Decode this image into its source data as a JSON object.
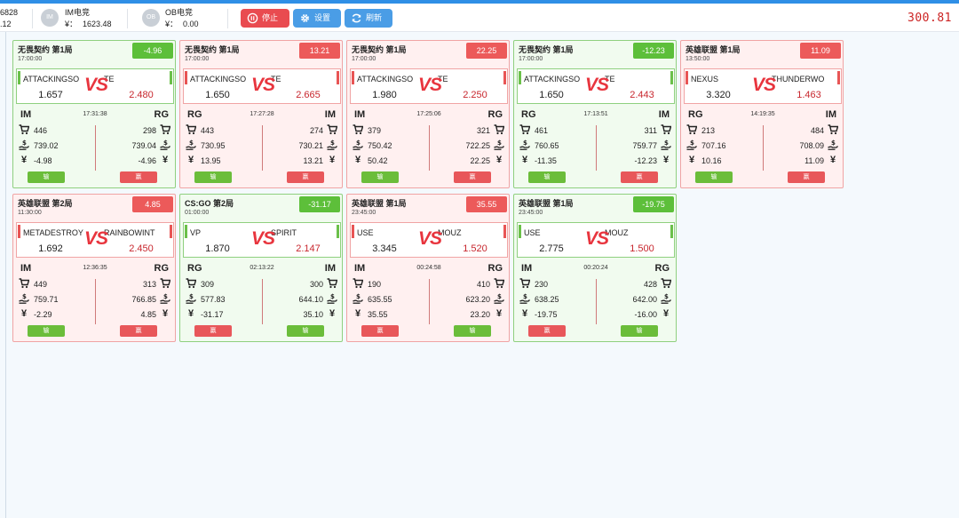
{
  "header": {
    "accounts": [
      {
        "line1": "6828",
        "line2": ".12"
      },
      {
        "avatar": "IM",
        "name": "IM电竞",
        "balance_label": "¥：",
        "balance": "1623.48"
      },
      {
        "avatar": "OB",
        "name": "OB电竞",
        "balance_label": "¥：",
        "balance": "0.00"
      }
    ],
    "buttons": {
      "stop": "停止",
      "settings": "设置",
      "refresh": "刷新"
    },
    "total": "300.81"
  },
  "colors": {
    "accent": "#4a9de6",
    "win_green": "#5dbf3a",
    "loss_red": "#ec5a5a",
    "vs_red": "#e8353e"
  },
  "cards": [
    {
      "status": "green",
      "game": "无畏契约 第1局",
      "time": "17:00:00",
      "profit": "-4.96",
      "team_a": "ATTACKINGSO",
      "team_b": "TE",
      "odds_a": "1.657",
      "odds_b": "2.480",
      "plat_a": "IM",
      "plat_b": "RG",
      "bet_time": "17:31:38",
      "stake_a": "446",
      "stake_b": "298",
      "ret_a": "739.02",
      "ret_b": "739.04",
      "pnl_a": "-4.98",
      "pnl_b": "-4.96",
      "res_a": "输",
      "res_b": "赢",
      "res_a_color": "g",
      "res_b_color": "r"
    },
    {
      "status": "red",
      "game": "无畏契约 第1局",
      "time": "17:00:00",
      "profit": "13.21",
      "team_a": "ATTACKINGSO",
      "team_b": "TE",
      "odds_a": "1.650",
      "odds_b": "2.665",
      "plat_a": "RG",
      "plat_b": "IM",
      "bet_time": "17:27:28",
      "stake_a": "443",
      "stake_b": "274",
      "ret_a": "730.95",
      "ret_b": "730.21",
      "pnl_a": "13.95",
      "pnl_b": "13.21",
      "res_a": "输",
      "res_b": "赢",
      "res_a_color": "g",
      "res_b_color": "r"
    },
    {
      "status": "red",
      "game": "无畏契约 第1局",
      "time": "17:00:00",
      "profit": "22.25",
      "team_a": "ATTACKINGSO",
      "team_b": "TE",
      "odds_a": "1.980",
      "odds_b": "2.250",
      "plat_a": "IM",
      "plat_b": "RG",
      "bet_time": "17:25:06",
      "stake_a": "379",
      "stake_b": "321",
      "ret_a": "750.42",
      "ret_b": "722.25",
      "pnl_a": "50.42",
      "pnl_b": "22.25",
      "res_a": "输",
      "res_b": "赢",
      "res_a_color": "g",
      "res_b_color": "r"
    },
    {
      "status": "green",
      "game": "无畏契约 第1局",
      "time": "17:00:00",
      "profit": "-12.23",
      "team_a": "ATTACKINGSO",
      "team_b": "TE",
      "odds_a": "1.650",
      "odds_b": "2.443",
      "plat_a": "RG",
      "plat_b": "IM",
      "bet_time": "17:13:51",
      "stake_a": "461",
      "stake_b": "311",
      "ret_a": "760.65",
      "ret_b": "759.77",
      "pnl_a": "-11.35",
      "pnl_b": "-12.23",
      "res_a": "输",
      "res_b": "赢",
      "res_a_color": "g",
      "res_b_color": "r"
    },
    {
      "status": "red",
      "game": "英雄联盟 第1局",
      "time": "13:50:00",
      "profit": "11.09",
      "team_a": "NEXUS",
      "team_b": "THUNDERWO",
      "odds_a": "3.320",
      "odds_b": "1.463",
      "plat_a": "RG",
      "plat_b": "IM",
      "bet_time": "14:19:35",
      "stake_a": "213",
      "stake_b": "484",
      "ret_a": "707.16",
      "ret_b": "708.09",
      "pnl_a": "10.16",
      "pnl_b": "11.09",
      "res_a": "输",
      "res_b": "赢",
      "res_a_color": "g",
      "res_b_color": "r"
    },
    {
      "status": "red",
      "game": "英雄联盟 第2局",
      "time": "11:30:00",
      "profit": "4.85",
      "team_a": "METADESTROY",
      "team_b": "RAINBOWINT",
      "odds_a": "1.692",
      "odds_b": "2.450",
      "plat_a": "IM",
      "plat_b": "RG",
      "bet_time": "12:36:35",
      "stake_a": "449",
      "stake_b": "313",
      "ret_a": "759.71",
      "ret_b": "766.85",
      "pnl_a": "-2.29",
      "pnl_b": "4.85",
      "res_a": "输",
      "res_b": "赢",
      "res_a_color": "g",
      "res_b_color": "r"
    },
    {
      "status": "green",
      "game": "CS:GO 第2局",
      "time": "01:00:00",
      "profit": "-31.17",
      "team_a": "VP",
      "team_b": "SPIRIT",
      "odds_a": "1.870",
      "odds_b": "2.147",
      "plat_a": "RG",
      "plat_b": "IM",
      "bet_time": "02:13:22",
      "stake_a": "309",
      "stake_b": "300",
      "ret_a": "577.83",
      "ret_b": "644.10",
      "pnl_a": "-31.17",
      "pnl_b": "35.10",
      "res_a": "赢",
      "res_b": "输",
      "res_a_color": "r",
      "res_b_color": "g"
    },
    {
      "status": "red",
      "game": "英雄联盟 第1局",
      "time": "23:45:00",
      "profit": "35.55",
      "team_a": "USE",
      "team_b": "MOUZ",
      "odds_a": "3.345",
      "odds_b": "1.520",
      "plat_a": "IM",
      "plat_b": "RG",
      "bet_time": "00:24:58",
      "stake_a": "190",
      "stake_b": "410",
      "ret_a": "635.55",
      "ret_b": "623.20",
      "pnl_a": "35.55",
      "pnl_b": "23.20",
      "res_a": "赢",
      "res_b": "输",
      "res_a_color": "r",
      "res_b_color": "g"
    },
    {
      "status": "green",
      "game": "英雄联盟 第1局",
      "time": "23:45:00",
      "profit": "-19.75",
      "team_a": "USE",
      "team_b": "MOUZ",
      "odds_a": "2.775",
      "odds_b": "1.500",
      "plat_a": "IM",
      "plat_b": "RG",
      "bet_time": "00:20:24",
      "stake_a": "230",
      "stake_b": "428",
      "ret_a": "638.25",
      "ret_b": "642.00",
      "pnl_a": "-19.75",
      "pnl_b": "-16.00",
      "res_a": "赢",
      "res_b": "输",
      "res_a_color": "r",
      "res_b_color": "g"
    }
  ]
}
